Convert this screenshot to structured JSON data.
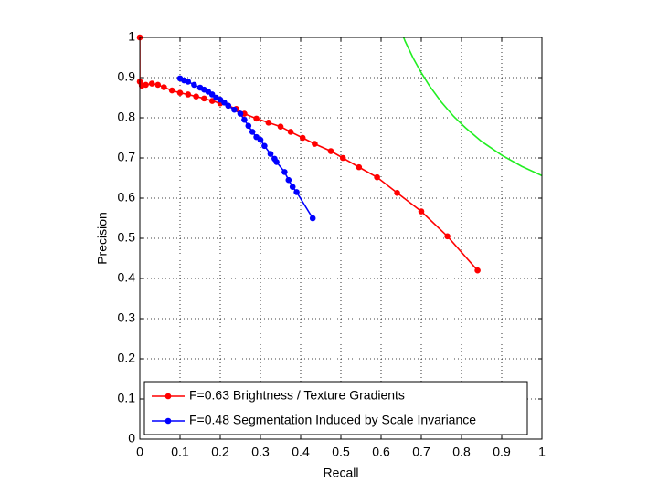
{
  "chart_data": {
    "type": "line",
    "xlabel": "Recall",
    "ylabel": "Precision",
    "xlim": [
      0,
      1
    ],
    "ylim": [
      0,
      1
    ],
    "xticks": [
      0,
      0.1,
      0.2,
      0.3,
      0.4,
      0.5,
      0.6,
      0.7,
      0.8,
      0.9,
      1
    ],
    "yticks": [
      0,
      0.1,
      0.2,
      0.3,
      0.4,
      0.5,
      0.6,
      0.7,
      0.8,
      0.9,
      1
    ],
    "grid": true,
    "legend": "lower left",
    "series": [
      {
        "name": "F=0.63 Brightness / Texture Gradients",
        "color": "#ff0000",
        "marker": true,
        "x": [
          0.0,
          0.0,
          0.005,
          0.015,
          0.03,
          0.045,
          0.06,
          0.08,
          0.1,
          0.12,
          0.14,
          0.16,
          0.18,
          0.2,
          0.22,
          0.24,
          0.26,
          0.29,
          0.32,
          0.35,
          0.375,
          0.405,
          0.435,
          0.475,
          0.505,
          0.545,
          0.59,
          0.64,
          0.7,
          0.765,
          0.84
        ],
        "values": [
          1.0,
          0.89,
          0.88,
          0.882,
          0.885,
          0.882,
          0.876,
          0.868,
          0.862,
          0.858,
          0.853,
          0.848,
          0.842,
          0.836,
          0.83,
          0.822,
          0.81,
          0.798,
          0.788,
          0.778,
          0.765,
          0.75,
          0.735,
          0.717,
          0.7,
          0.677,
          0.652,
          0.613,
          0.567,
          0.505,
          0.42
        ]
      },
      {
        "name": "F=0.48 Segmentation Induced by Scale Invariance",
        "color": "#0000ff",
        "marker": true,
        "x": [
          0.1,
          0.11,
          0.12,
          0.135,
          0.15,
          0.16,
          0.17,
          0.18,
          0.19,
          0.2,
          0.21,
          0.22,
          0.235,
          0.25,
          0.26,
          0.27,
          0.28,
          0.29,
          0.3,
          0.31,
          0.325,
          0.335,
          0.34,
          0.36,
          0.37,
          0.38,
          0.39,
          0.43
        ],
        "values": [
          0.898,
          0.893,
          0.89,
          0.882,
          0.875,
          0.87,
          0.865,
          0.858,
          0.85,
          0.845,
          0.838,
          0.83,
          0.82,
          0.81,
          0.795,
          0.78,
          0.765,
          0.752,
          0.745,
          0.73,
          0.71,
          0.698,
          0.69,
          0.665,
          0.645,
          0.628,
          0.615,
          0.55
        ]
      },
      {
        "color": "#22ee22",
        "marker": false,
        "x": [
          0.656,
          0.66,
          0.68,
          0.7,
          0.72,
          0.75,
          0.78,
          0.81,
          0.85,
          0.9,
          0.95,
          1.0
        ],
        "values": [
          1.0,
          0.99,
          0.948,
          0.912,
          0.88,
          0.839,
          0.804,
          0.775,
          0.741,
          0.707,
          0.679,
          0.656
        ]
      }
    ]
  }
}
